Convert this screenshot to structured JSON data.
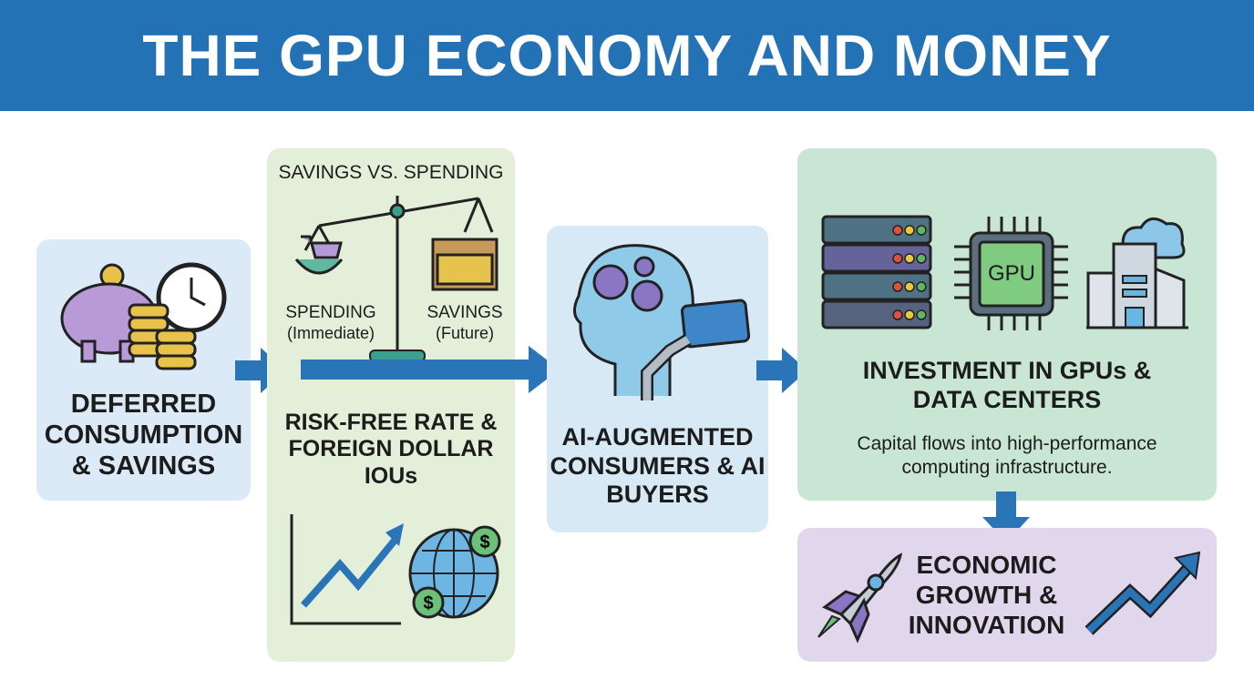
{
  "title": "THE GPU ECONOMY AND MONEY",
  "steps": {
    "deferred": "DEFERRED CONSUMPTION & SAVINGS",
    "savings_vs_spending": {
      "heading": "SAVINGS VS. SPENDING",
      "left_label": "SPENDING",
      "left_sub": "(Immediate)",
      "right_label": "SAVINGS",
      "right_sub": "(Future)"
    },
    "risk_free": "RISK-FREE RATE & FOREIGN DOLLAR IOUs",
    "consumers": "AI-AUGMENTED CONSUMERS & AI BUYERS",
    "investment": {
      "title": "INVESTMENT IN GPUs & DATA CENTERS",
      "desc": "Capital flows into high-performance computing infrastructure.",
      "gpu_label": "GPU"
    },
    "growth": "ECONOMIC GROWTH & INNOVATION"
  },
  "colors": {
    "header": "#2472b6",
    "arrow": "#2a74b8"
  }
}
